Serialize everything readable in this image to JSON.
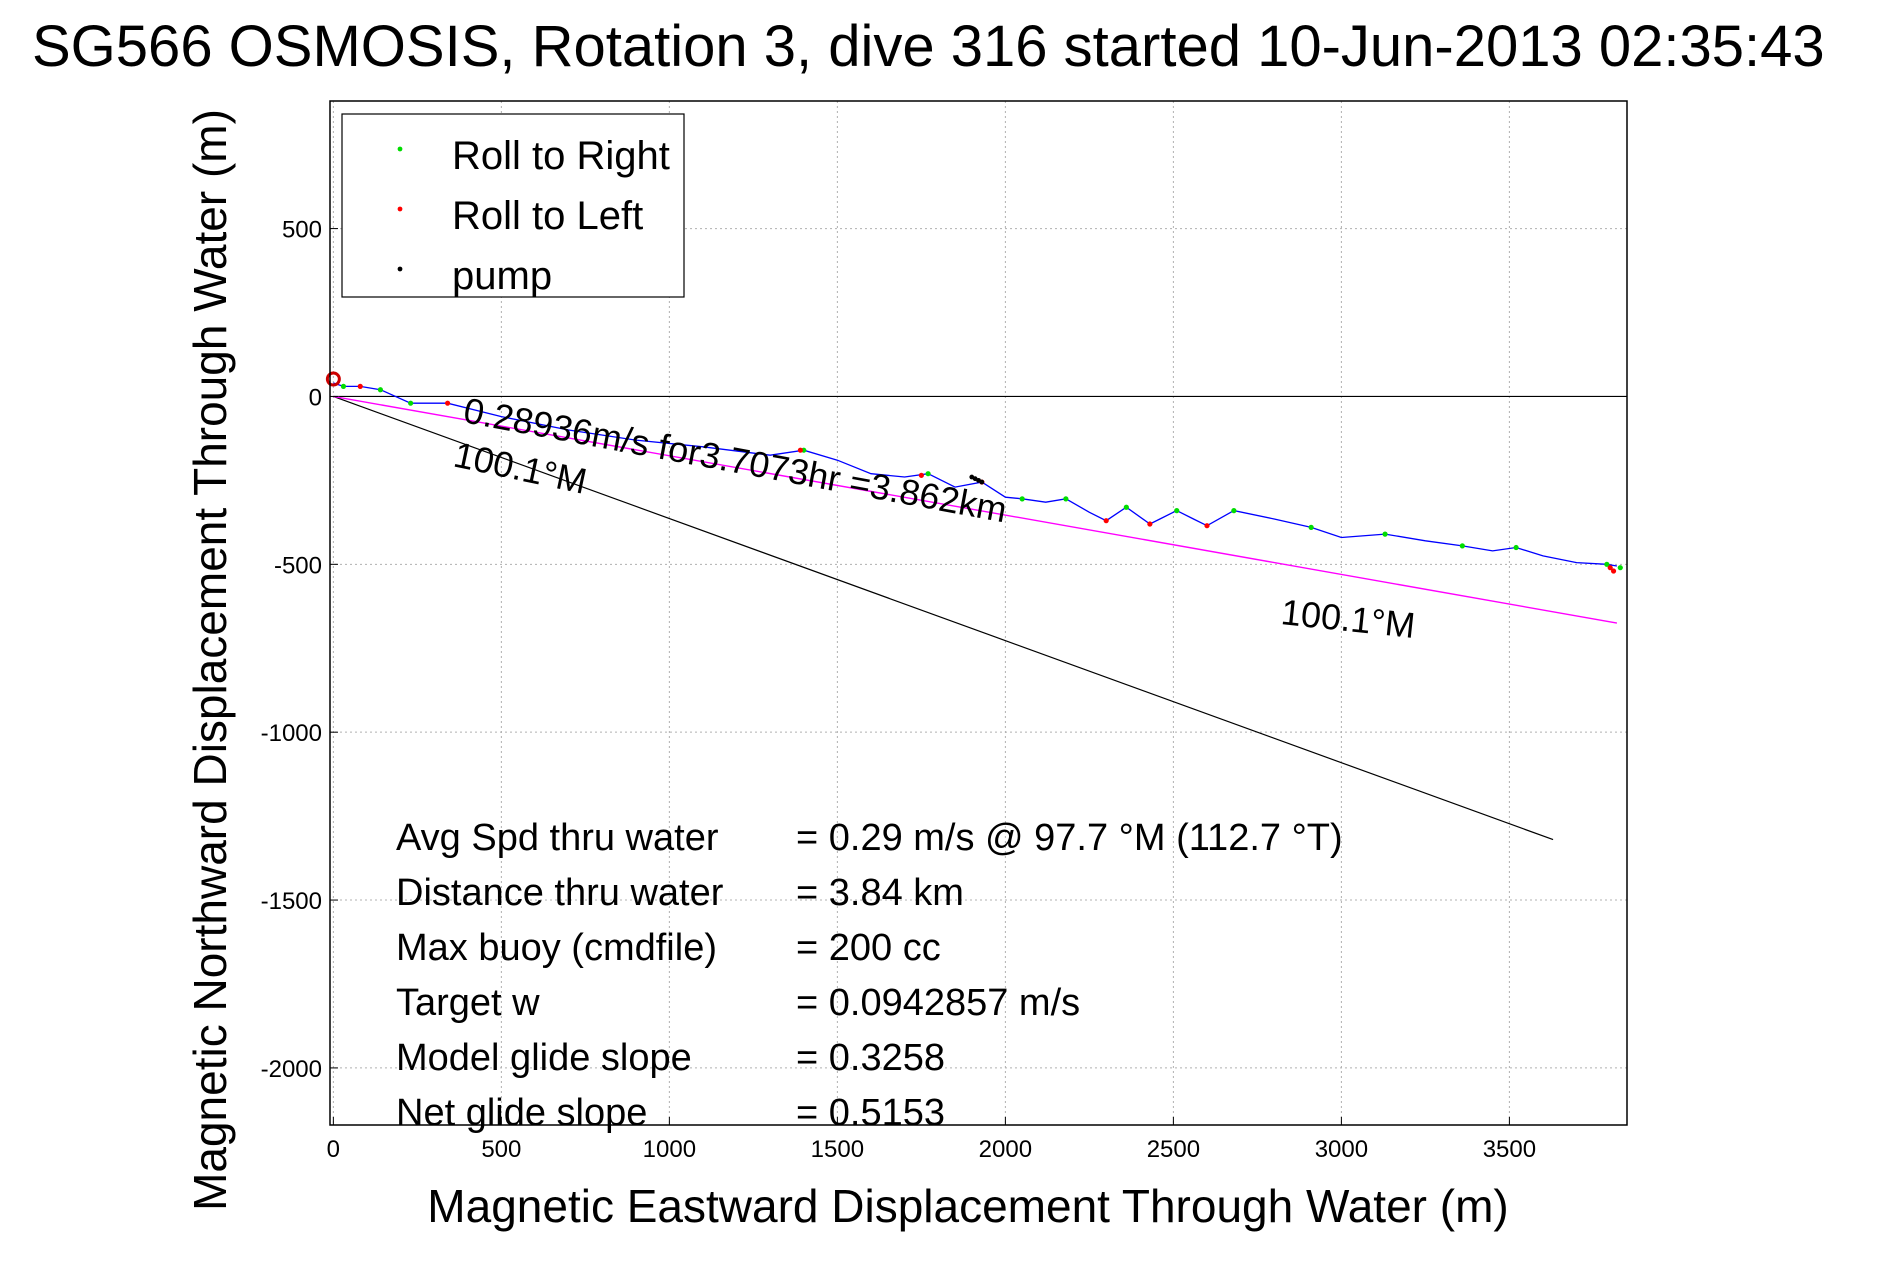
{
  "chart_data": {
    "type": "line",
    "title": "SG566 OSMOSIS, Rotation 3, dive 316 started 10-Jun-2013 02:35:43",
    "xlabel": "Magnetic Eastward Displacement Through Water (m)",
    "ylabel": "Magnetic Northward Displacement Through Water (m)",
    "xlim": [
      -10,
      3850
    ],
    "ylim": [
      -2170,
      880
    ],
    "xticks": [
      "0",
      "500",
      "1000",
      "1500",
      "2000",
      "2500",
      "3000",
      "3500"
    ],
    "yticks": [
      "500",
      "0",
      "-500",
      "-1000",
      "-1500",
      "-2000"
    ],
    "grid": true,
    "legend_position": "top-left",
    "legend": [
      "Roll to Right",
      "Roll to Left",
      "pump"
    ],
    "colors": {
      "track": "#0000ff",
      "roll_right": "#00dd00",
      "roll_left": "#ff0000",
      "pump": "#000000",
      "mean_heading_line": "#ff00ff",
      "heading_line": "#000000",
      "start_marker": "#cc0000"
    },
    "track": {
      "x": [
        0,
        30,
        80,
        140,
        230,
        340,
        500,
        700,
        900,
        1100,
        1300,
        1400,
        1500,
        1600,
        1700,
        1770,
        1850,
        1930,
        2000,
        2050,
        2120,
        2180,
        2250,
        2300,
        2360,
        2430,
        2460,
        2510,
        2560,
        2600,
        2680,
        2800,
        2910,
        3000,
        3130,
        3250,
        3360,
        3450,
        3520,
        3600,
        3700,
        3790,
        3820
      ],
      "y": [
        40,
        30,
        30,
        20,
        -20,
        -20,
        -60,
        -100,
        -130,
        -150,
        -175,
        -160,
        -190,
        -230,
        -240,
        -230,
        -270,
        -255,
        -300,
        -305,
        -315,
        -305,
        -345,
        -370,
        -330,
        -380,
        -365,
        -340,
        -365,
        -385,
        -340,
        -365,
        -390,
        -420,
        -410,
        -430,
        -445,
        -460,
        -450,
        -475,
        -495,
        -500,
        -505
      ]
    },
    "roll_right_points": {
      "x": [
        30,
        140,
        230,
        1400,
        1770,
        2050,
        2180,
        2360,
        2510,
        2680,
        2910,
        3130,
        3360,
        3520,
        3790,
        3830
      ],
      "y": [
        30,
        20,
        -20,
        -160,
        -230,
        -305,
        -305,
        -330,
        -340,
        -340,
        -390,
        -410,
        -445,
        -450,
        -500,
        -510
      ]
    },
    "roll_left_points": {
      "x": [
        80,
        340,
        1390,
        1750,
        1930,
        2300,
        2430,
        2600,
        3800,
        3810
      ],
      "y": [
        30,
        -20,
        -160,
        -235,
        -255,
        -370,
        -380,
        -385,
        -510,
        -520
      ]
    },
    "pump_points": {
      "x": [
        1900,
        1910,
        1920,
        1930
      ],
      "y": [
        -240,
        -245,
        -250,
        -255
      ]
    },
    "mean_heading_line": {
      "heading": "100.1°M",
      "x": [
        0,
        3820
      ],
      "y": [
        0,
        -675
      ]
    },
    "heading_line": {
      "x": [
        0,
        3630
      ],
      "y": [
        0,
        -1320
      ]
    },
    "reference_line_y": 0,
    "annotations": {
      "speed": "0.28936m/s for3.7073hr =3.862km",
      "heading_1": "100.1°M",
      "heading_2": "100.1°M"
    },
    "stats": [
      {
        "label": "Avg Spd thru water",
        "value": "=  0.29 m/s @  97.7 °M (112.7 °T)"
      },
      {
        "label": "Distance thru water",
        "value": "=  3.84 km"
      },
      {
        "label": "Max buoy (cmdfile)",
        "value": "= 200 cc"
      },
      {
        "label": "Target w",
        "value": "= 0.0942857 m/s"
      },
      {
        "label": "Model glide slope",
        "value": "= 0.3258"
      },
      {
        "label": "Net glide slope",
        "value": "= 0.5153"
      }
    ]
  }
}
